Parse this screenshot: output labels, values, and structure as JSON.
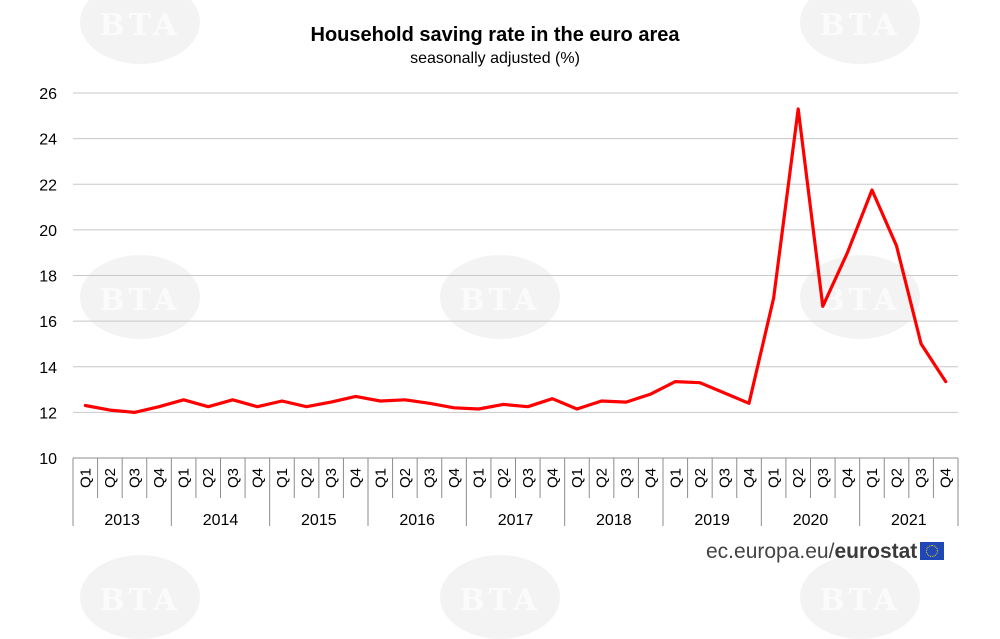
{
  "chart_data": {
    "type": "line",
    "title": "Household saving rate in the euro area",
    "subtitle": "seasonally adjusted (%)",
    "years": [
      "2013",
      "2014",
      "2015",
      "2016",
      "2017",
      "2018",
      "2019",
      "2020",
      "2021"
    ],
    "quarters": [
      "Q1",
      "Q2",
      "Q3",
      "Q4"
    ],
    "ylim": [
      10,
      26
    ],
    "yticks": [
      10,
      12,
      14,
      16,
      18,
      20,
      22,
      24,
      26
    ],
    "grid": true,
    "series": [
      {
        "color": "#ff0000",
        "values": [
          12.3,
          12.1,
          12.0,
          12.25,
          12.55,
          12.25,
          12.55,
          12.25,
          12.5,
          12.25,
          12.45,
          12.7,
          12.5,
          12.55,
          12.4,
          12.2,
          12.15,
          12.35,
          12.25,
          12.6,
          12.15,
          12.5,
          12.45,
          12.8,
          13.35,
          13.3,
          12.85,
          12.4,
          17.0,
          25.3,
          16.65,
          19.0,
          21.75,
          19.3,
          15.0,
          13.35
        ]
      }
    ]
  },
  "source": {
    "prefix": "ec.europa.eu/",
    "brand": "eurostat"
  }
}
